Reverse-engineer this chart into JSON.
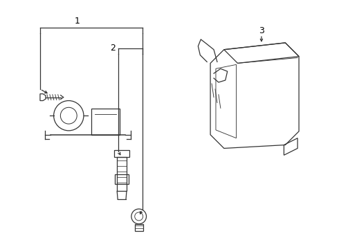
{
  "bg_color": "#ffffff",
  "line_color": "#333333",
  "label_color": "#000000",
  "figsize": [
    4.9,
    3.6
  ],
  "dpi": 100,
  "lw": 0.9
}
